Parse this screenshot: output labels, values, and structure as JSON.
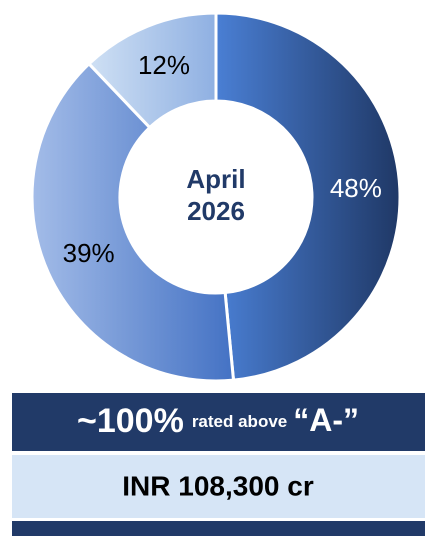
{
  "chart_data": {
    "type": "donut",
    "categories": [
      null,
      null,
      null
    ],
    "values": [
      48,
      39,
      12
    ],
    "value_labels": [
      "48%",
      "39%",
      "12%"
    ],
    "colors": [
      [
        "#4a7fd4",
        "#1f3866"
      ],
      [
        "#a3bce8",
        "#4472c4"
      ],
      [
        "#cfe0f4",
        "#8fb0e2"
      ]
    ],
    "center_label": [
      "April",
      "2026"
    ]
  },
  "footer": {
    "highlight": "~100%",
    "text": "rated above",
    "rating": "“A-”",
    "amount": "INR 108,300 cr"
  }
}
